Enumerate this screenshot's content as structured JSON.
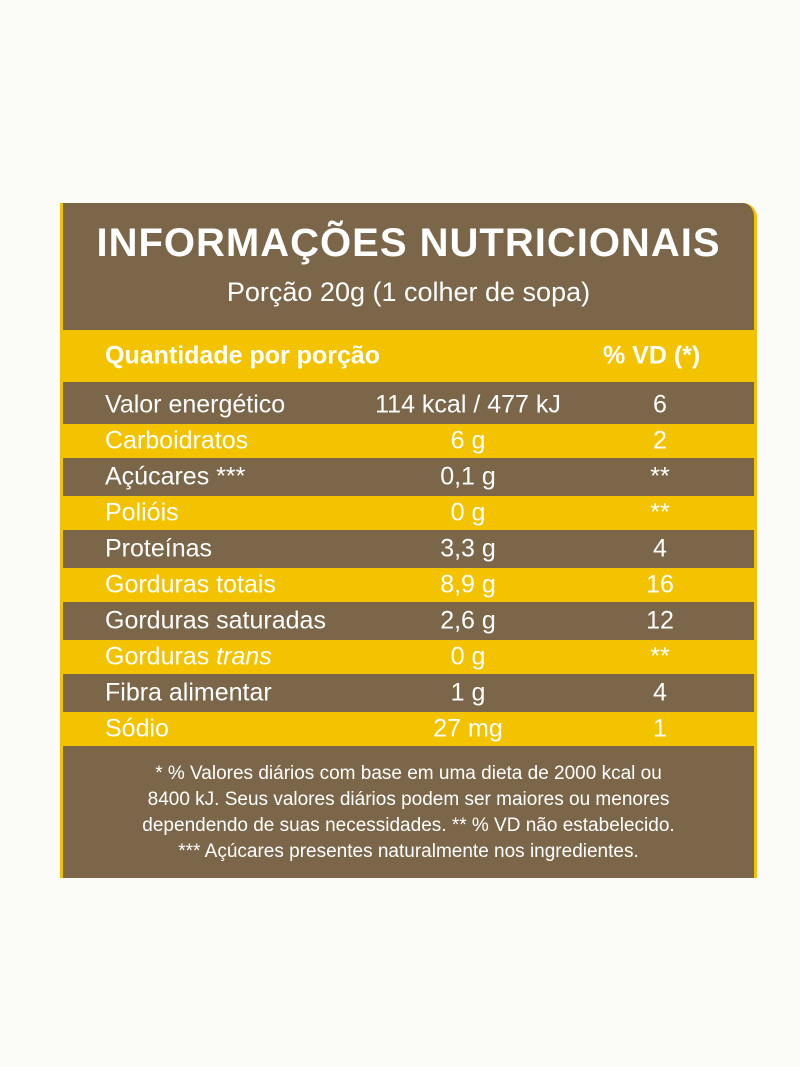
{
  "header": {
    "title": "INFORMAÇÕES NUTRICIONAIS",
    "subtitle": "Porção 20g (1 colher de sopa)"
  },
  "table": {
    "columns": [
      "Quantidade por porção",
      "% VD (*)"
    ],
    "rows": [
      {
        "label": "Valor energético",
        "amount": "114 kcal / 477 kJ",
        "dv": "6"
      },
      {
        "label": "Carboidratos",
        "amount": "6 g",
        "dv": "2"
      },
      {
        "label": "Açúcares ***",
        "amount": "0,1 g",
        "dv": "**"
      },
      {
        "label": "Polióis",
        "amount": "0 g",
        "dv": "**"
      },
      {
        "label": "Proteínas",
        "amount": "3,3 g",
        "dv": "4"
      },
      {
        "label": "Gorduras totais",
        "amount": "8,9 g",
        "dv": "16"
      },
      {
        "label": "Gorduras saturadas",
        "amount": "2,6 g",
        "dv": "12"
      },
      {
        "label": "Gorduras",
        "label_italic": "trans",
        "amount": "0 g",
        "dv": "**"
      },
      {
        "label": "Fibra alimentar",
        "amount": "1 g",
        "dv": "4"
      },
      {
        "label": "Sódio",
        "amount": "27 mg",
        "dv": "1"
      }
    ]
  },
  "footnote": [
    "* % Valores diários com base em uma dieta de 2000 kcal ou",
    "8400 kJ. Seus valores diários podem ser maiores ou menores",
    "dependendo de suas necessidades. ** % VD não estabelecido.",
    "*** Açúcares presentes naturalmente nos ingredientes."
  ]
}
